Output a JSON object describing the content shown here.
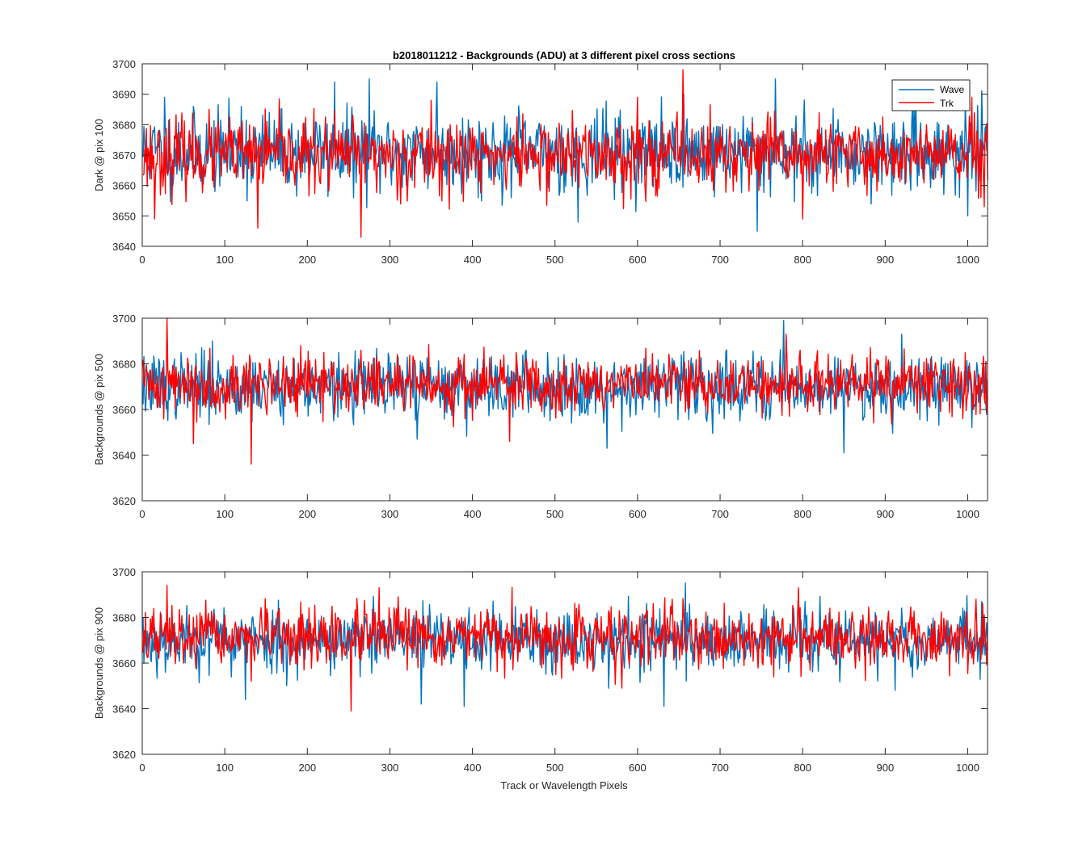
{
  "figure": {
    "title": "b2018011212 - Backgrounds (ADU) at 3 different pixel cross sections",
    "xlabel": "Track or Wavelength Pixels"
  },
  "legend": {
    "position": "top-right",
    "entries": [
      {
        "name": "Wave",
        "color": "#0072BD"
      },
      {
        "name": "Trk",
        "color": "#FF0000"
      }
    ]
  },
  "chart_data": [
    {
      "type": "line",
      "ylabel": "Dark @ pix 100",
      "xlim": [
        0,
        1024
      ],
      "ylim": [
        3640,
        3700
      ],
      "xticks": [
        0,
        100,
        200,
        300,
        400,
        500,
        600,
        700,
        800,
        900,
        1000
      ],
      "yticks": [
        3640,
        3650,
        3660,
        3670,
        3680,
        3690,
        3700
      ],
      "series": [
        {
          "name": "Wave",
          "color": "#0072BD",
          "mean": 3671,
          "spread": 6.5,
          "seed": 11,
          "spikes": [
            [
              27,
              3689
            ],
            [
              120,
              3686
            ],
            [
              233,
              3694
            ],
            [
              275,
              3695
            ],
            [
              357,
              3694
            ],
            [
              528,
              3648
            ],
            [
              745,
              3645
            ],
            [
              767,
              3695
            ],
            [
              1000,
              3650
            ]
          ]
        },
        {
          "name": "Trk",
          "color": "#FF0000",
          "mean": 3670,
          "spread": 6.0,
          "seed": 23,
          "spikes": [
            [
              15,
              3649
            ],
            [
              140,
              3646
            ],
            [
              265,
              3643
            ],
            [
              350,
              3688
            ],
            [
              600,
              3689
            ],
            [
              655,
              3698
            ],
            [
              800,
              3649
            ],
            [
              1020,
              3653
            ]
          ]
        }
      ]
    },
    {
      "type": "line",
      "ylabel": "Backgrounds @ pix 500",
      "xlim": [
        0,
        1024
      ],
      "ylim": [
        3620,
        3700
      ],
      "xticks": [
        0,
        100,
        200,
        300,
        400,
        500,
        600,
        700,
        800,
        900,
        1000
      ],
      "yticks": [
        3620,
        3640,
        3660,
        3680,
        3700
      ],
      "series": [
        {
          "name": "Wave",
          "color": "#0072BD",
          "mean": 3670,
          "spread": 7.0,
          "seed": 37,
          "spikes": [
            [
              85,
              3690
            ],
            [
              333,
              3647
            ],
            [
              563,
              3643
            ],
            [
              777,
              3699
            ],
            [
              850,
              3641
            ],
            [
              920,
              3693
            ]
          ]
        },
        {
          "name": "Trk",
          "color": "#FF0000",
          "mean": 3671,
          "spread": 6.5,
          "seed": 41,
          "spikes": [
            [
              30,
              3700
            ],
            [
              62,
              3645
            ],
            [
              132,
              3636
            ],
            [
              445,
              3646
            ],
            [
              780,
              3693
            ],
            [
              1015,
              3658
            ]
          ]
        }
      ]
    },
    {
      "type": "line",
      "ylabel": "Backgrounds @ pix 900",
      "xlim": [
        0,
        1024
      ],
      "ylim": [
        3620,
        3700
      ],
      "xticks": [
        0,
        100,
        200,
        300,
        400,
        500,
        600,
        700,
        800,
        900,
        1000
      ],
      "yticks": [
        3620,
        3640,
        3660,
        3680,
        3700
      ],
      "series": [
        {
          "name": "Wave",
          "color": "#0072BD",
          "mean": 3670,
          "spread": 7.0,
          "seed": 53,
          "spikes": [
            [
              125,
              3644
            ],
            [
              338,
              3642
            ],
            [
              390,
              3641
            ],
            [
              632,
              3641
            ],
            [
              658,
              3695
            ],
            [
              912,
              3648
            ]
          ]
        },
        {
          "name": "Trk",
          "color": "#FF0000",
          "mean": 3671,
          "spread": 6.5,
          "seed": 67,
          "spikes": [
            [
              30,
              3694
            ],
            [
              253,
              3639
            ],
            [
              287,
              3693
            ],
            [
              795,
              3693
            ],
            [
              1010,
              3688
            ]
          ]
        }
      ]
    }
  ]
}
